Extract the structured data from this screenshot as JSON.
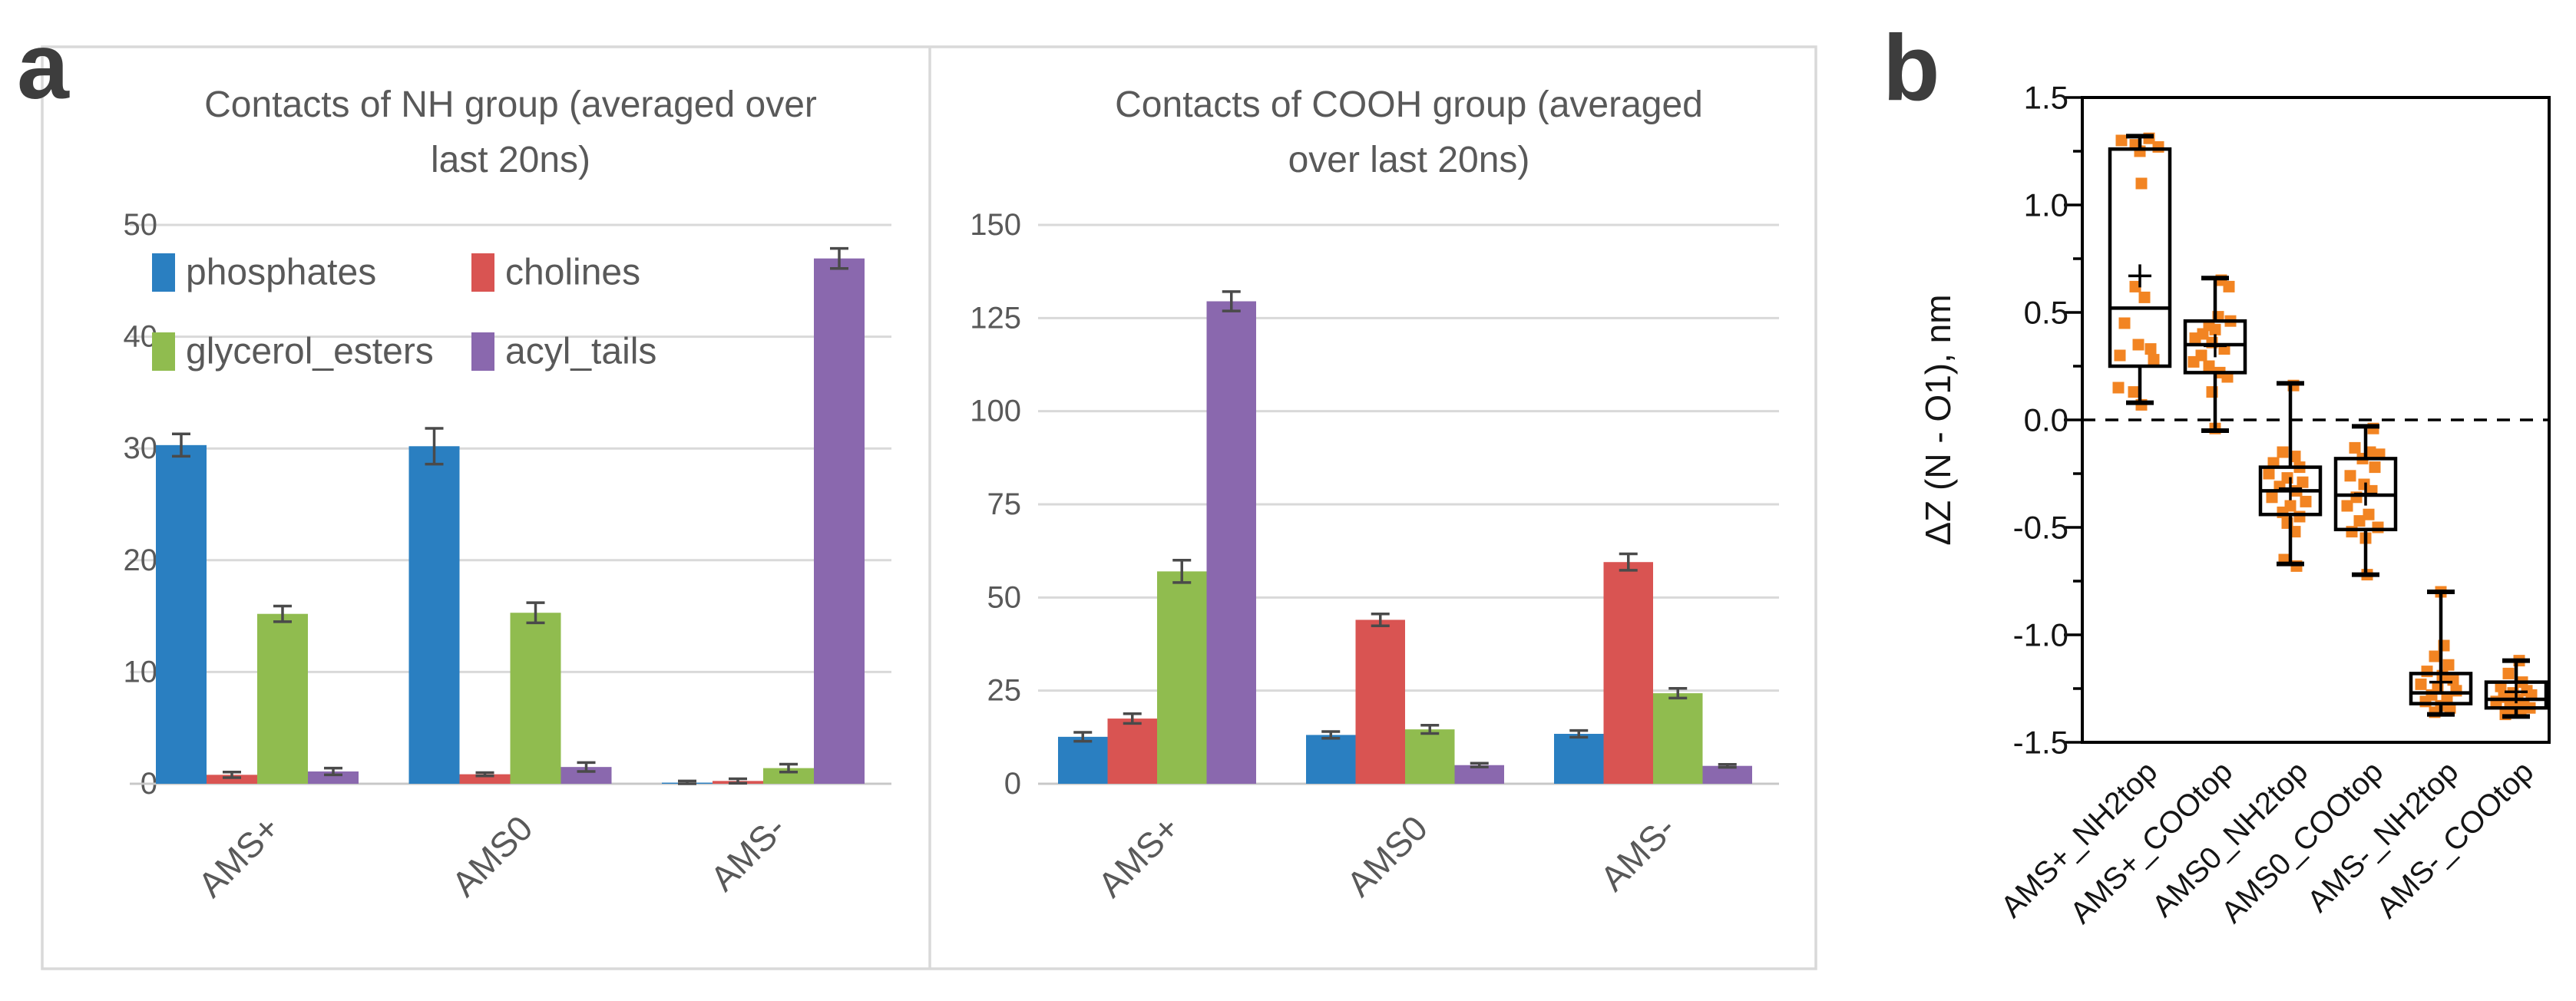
{
  "panels": {
    "a": {
      "letter": "a"
    },
    "b": {
      "letter": "b"
    }
  },
  "colors": {
    "phosphates": "#2A7FC1",
    "cholines": "#D95452",
    "glycerol_esters": "#90BC4F",
    "acyl_tails": "#8A68AE",
    "scatter_orange": "#F28422",
    "gridline": "#D9D9D9",
    "axis_line": "#C8C8C8",
    "panel_border": "#D9D9D9",
    "text_gray": "#595959",
    "error_bar": "#4A4A4A",
    "box_stroke": "#000000"
  },
  "chart_data": [
    {
      "type": "bar",
      "title": "Contacts of NH group (averaged over last 20ns)",
      "title_line1": "Contacts of NH group (averaged over",
      "title_line2": "last 20ns)",
      "categories": [
        "AMS+",
        "AMS0",
        "AMS-"
      ],
      "series": [
        {
          "name": "phosphates",
          "color": "#2A7FC1",
          "values": [
            30.3,
            30.2,
            0.1
          ],
          "errors": [
            1.0,
            1.6,
            0.15
          ]
        },
        {
          "name": "cholines",
          "color": "#D95452",
          "values": [
            0.8,
            0.85,
            0.25
          ],
          "errors": [
            0.25,
            0.15,
            0.2
          ]
        },
        {
          "name": "glycerol_esters",
          "color": "#90BC4F",
          "values": [
            15.2,
            15.3,
            1.4
          ],
          "errors": [
            0.7,
            0.9,
            0.35
          ]
        },
        {
          "name": "acyl_tails",
          "color": "#8A68AE",
          "values": [
            1.1,
            1.5,
            47.0
          ],
          "errors": [
            0.3,
            0.4,
            0.9
          ]
        }
      ],
      "ylim": [
        0,
        50
      ],
      "ytick": 10,
      "grid": true,
      "legend_position": "top-left-inside",
      "x_label_rotation": -45
    },
    {
      "type": "bar",
      "title": "Contacts of COOH group (averaged over last 20ns)",
      "title_line1": "Contacts of COOH group (averaged",
      "title_line2": "over last 20ns)",
      "categories": [
        "AMS+",
        "AMS0",
        "AMS-"
      ],
      "series": [
        {
          "name": "phosphates",
          "color": "#2A7FC1",
          "values": [
            12.6,
            13.1,
            13.4
          ],
          "errors": [
            1.2,
            0.9,
            0.9
          ]
        },
        {
          "name": "cholines",
          "color": "#D95452",
          "values": [
            17.5,
            44.0,
            59.5
          ],
          "errors": [
            1.3,
            1.6,
            2.2
          ]
        },
        {
          "name": "glycerol_esters",
          "color": "#90BC4F",
          "values": [
            57.0,
            14.6,
            24.3
          ],
          "errors": [
            3.0,
            1.1,
            1.3
          ]
        },
        {
          "name": "acyl_tails",
          "color": "#8A68AE",
          "values": [
            129.5,
            5.0,
            4.8
          ],
          "errors": [
            2.6,
            0.5,
            0.4
          ]
        }
      ],
      "ylim": [
        0,
        150
      ],
      "ytick": 25,
      "grid": true,
      "legend": false,
      "x_label_rotation": -45
    },
    {
      "type": "box",
      "ylabel": "ΔZ (N - O1), nm",
      "ylim": [
        -1.5,
        1.5
      ],
      "ytick_major": 0.5,
      "ytick_minor": 0.25,
      "zero_line": "dashed",
      "point_color": "#F28422",
      "categories": [
        "AMS+_NH2top",
        "AMS+_COOtop",
        "AMS0_NH2top",
        "AMS0_COOtop",
        "AMS-_NH2top",
        "AMS-_COOtop"
      ],
      "boxes": [
        {
          "q1": 0.25,
          "median": 0.52,
          "q3": 1.26,
          "mean": 0.67,
          "whisker_low": 0.08,
          "whisker_high": 1.32
        },
        {
          "q1": 0.22,
          "median": 0.35,
          "q3": 0.46,
          "mean": 0.345,
          "whisker_low": -0.05,
          "whisker_high": 0.66
        },
        {
          "q1": -0.44,
          "median": -0.33,
          "q3": -0.22,
          "mean": -0.32,
          "whisker_low": -0.67,
          "whisker_high": 0.17
        },
        {
          "q1": -0.51,
          "median": -0.35,
          "q3": -0.18,
          "mean": -0.345,
          "whisker_low": -0.72,
          "whisker_high": -0.03
        },
        {
          "q1": -1.32,
          "median": -1.27,
          "q3": -1.18,
          "mean": -1.22,
          "whisker_low": -1.37,
          "whisker_high": -0.8
        },
        {
          "q1": -1.34,
          "median": -1.3,
          "q3": -1.22,
          "mean": -1.265,
          "whisker_low": -1.38,
          "whisker_high": -1.12
        }
      ],
      "points": [
        [
          [
            -24,
            1.3
          ],
          [
            -6,
            1.28
          ],
          [
            12,
            1.31
          ],
          [
            24,
            1.27
          ],
          [
            0,
            1.25
          ],
          [
            2,
            1.1
          ],
          [
            -6,
            0.62
          ],
          [
            6,
            0.57
          ],
          [
            -20,
            0.45
          ],
          [
            -2,
            0.35
          ],
          [
            14,
            0.33
          ],
          [
            -26,
            0.3
          ],
          [
            18,
            0.28
          ],
          [
            -28,
            0.15
          ],
          [
            -8,
            0.13
          ],
          [
            2,
            0.07
          ]
        ],
        [
          [
            8,
            0.65
          ],
          [
            18,
            0.62
          ],
          [
            4,
            0.48
          ],
          [
            20,
            0.46
          ],
          [
            -8,
            0.44
          ],
          [
            0,
            0.42
          ],
          [
            -16,
            0.4
          ],
          [
            -26,
            0.38
          ],
          [
            -4,
            0.36
          ],
          [
            12,
            0.33
          ],
          [
            -18,
            0.3
          ],
          [
            -28,
            0.27
          ],
          [
            -8,
            0.25
          ],
          [
            6,
            0.22
          ],
          [
            16,
            0.2
          ],
          [
            -4,
            0.13
          ],
          [
            0,
            -0.04
          ]
        ],
        [
          [
            4,
            0.16
          ],
          [
            -10,
            -0.15
          ],
          [
            6,
            -0.17
          ],
          [
            -22,
            -0.2
          ],
          [
            12,
            -0.22
          ],
          [
            -28,
            -0.25
          ],
          [
            -4,
            -0.27
          ],
          [
            16,
            -0.29
          ],
          [
            -14,
            -0.31
          ],
          [
            8,
            -0.33
          ],
          [
            -24,
            -0.36
          ],
          [
            20,
            -0.38
          ],
          [
            0,
            -0.4
          ],
          [
            -10,
            -0.43
          ],
          [
            12,
            -0.45
          ],
          [
            -4,
            -0.48
          ],
          [
            6,
            -0.52
          ],
          [
            -8,
            -0.65
          ],
          [
            8,
            -0.68
          ]
        ],
        [
          [
            10,
            -0.04
          ],
          [
            -14,
            -0.13
          ],
          [
            6,
            -0.15
          ],
          [
            18,
            -0.16
          ],
          [
            -4,
            -0.18
          ],
          [
            12,
            -0.22
          ],
          [
            -20,
            -0.26
          ],
          [
            -2,
            -0.3
          ],
          [
            8,
            -0.33
          ],
          [
            -12,
            -0.36
          ],
          [
            -24,
            -0.4
          ],
          [
            4,
            -0.44
          ],
          [
            -8,
            -0.47
          ],
          [
            16,
            -0.5
          ],
          [
            -18,
            -0.52
          ],
          [
            0,
            -0.55
          ],
          [
            2,
            -0.72
          ]
        ],
        [
          [
            0,
            -0.8
          ],
          [
            4,
            -1.05
          ],
          [
            -8,
            -1.1
          ],
          [
            10,
            -1.14
          ],
          [
            -18,
            -1.17
          ],
          [
            2,
            -1.19
          ],
          [
            16,
            -1.21
          ],
          [
            -26,
            -1.23
          ],
          [
            -4,
            -1.25
          ],
          [
            20,
            -1.26
          ],
          [
            -12,
            -1.28
          ],
          [
            8,
            -1.29
          ],
          [
            -20,
            -1.31
          ],
          [
            0,
            -1.33
          ],
          [
            12,
            -1.34
          ],
          [
            -8,
            -1.36
          ]
        ],
        [
          [
            4,
            -1.12
          ],
          [
            -10,
            -1.18
          ],
          [
            8,
            -1.22
          ],
          [
            -20,
            -1.24
          ],
          [
            14,
            -1.26
          ],
          [
            -4,
            -1.27
          ],
          [
            20,
            -1.28
          ],
          [
            -16,
            -1.29
          ],
          [
            2,
            -1.3
          ],
          [
            -26,
            -1.31
          ],
          [
            10,
            -1.32
          ],
          [
            -8,
            -1.33
          ],
          [
            18,
            -1.34
          ],
          [
            -2,
            -1.35
          ],
          [
            6,
            -1.36
          ],
          [
            -14,
            -1.37
          ]
        ]
      ]
    }
  ]
}
